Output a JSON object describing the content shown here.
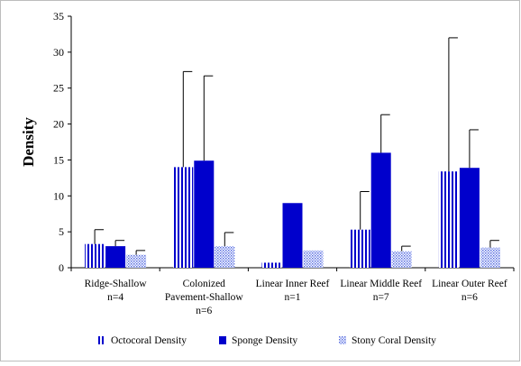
{
  "chart_data": {
    "type": "bar",
    "title": "",
    "xlabel": "",
    "ylabel": "Density",
    "ylim": [
      0,
      35
    ],
    "yticks": [
      0,
      5,
      10,
      15,
      20,
      25,
      30,
      35
    ],
    "grid": false,
    "legend_position": "bottom",
    "error_bars": true,
    "categories": [
      {
        "lines": [
          "Ridge-Shallow",
          "n=4"
        ]
      },
      {
        "lines": [
          "Colonized",
          "Pavement-Shallow",
          "n=6"
        ]
      },
      {
        "lines": [
          "Linear Inner Reef",
          "n=1"
        ]
      },
      {
        "lines": [
          "Linear Middle Reef",
          "n=7"
        ]
      },
      {
        "lines": [
          "Linear Outer Reef",
          "n=6"
        ]
      }
    ],
    "series": [
      {
        "name": "Octocoral Density",
        "pattern": "vertical-stripes",
        "color": "#0000cc",
        "values": [
          3.3,
          14.0,
          0.7,
          5.3,
          13.4
        ],
        "errors": [
          2.0,
          13.3,
          0.0,
          5.3,
          18.6
        ]
      },
      {
        "name": "Sponge Density",
        "pattern": "solid",
        "color": "#0000cc",
        "values": [
          3.0,
          14.9,
          9.0,
          16.0,
          13.9
        ],
        "errors": [
          0.8,
          11.8,
          0.0,
          5.3,
          5.3
        ]
      },
      {
        "name": "Stony Coral Density",
        "pattern": "dots",
        "color": "#6b7fe0",
        "values": [
          1.8,
          3.0,
          2.4,
          2.3,
          2.8
        ],
        "errors": [
          0.6,
          1.9,
          0.0,
          0.7,
          1.0
        ]
      }
    ]
  }
}
